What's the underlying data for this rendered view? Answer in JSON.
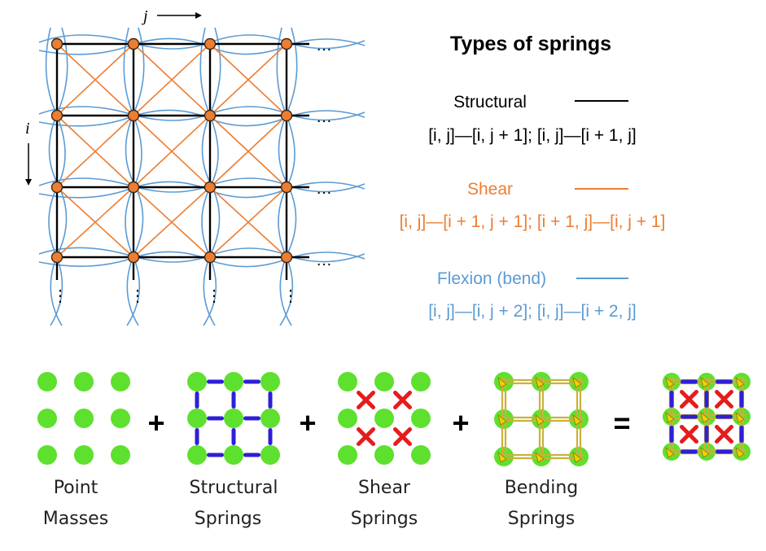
{
  "grid": {
    "i_label": "i",
    "j_label": "j",
    "ellipsis_h": "…",
    "ellipsis_v": "⋮"
  },
  "types": {
    "title": "Types of springs",
    "structural": {
      "label": "Structural",
      "formula": "[i, j]—[i, j + 1]; [i, j]—[i + 1, j]",
      "color": "#000000"
    },
    "shear": {
      "label": "Shear",
      "formula": "[i, j]—[i + 1, j + 1]; [i + 1, j]—[i, j + 1]",
      "color": "#ed7d31"
    },
    "flexion": {
      "label": "Flexion (bend)",
      "formula": "[i, j]—[i, j + 2]; [i, j]—[i + 2, j]",
      "color": "#5b9bd5"
    }
  },
  "equation": {
    "plus": "+",
    "equals": "=",
    "captions": [
      {
        "line1": "Point",
        "line2": "Masses"
      },
      {
        "line1": "Structural",
        "line2": "Springs"
      },
      {
        "line1": "Shear",
        "line2": "Springs"
      },
      {
        "line1": "Bending",
        "line2": "Springs"
      }
    ],
    "colors": {
      "mass": "#5ee02e",
      "structural": "#2e1fd6",
      "shear": "#e51c1c",
      "bending": "#c9b23a",
      "bending_arrow": "#f2d000"
    }
  }
}
